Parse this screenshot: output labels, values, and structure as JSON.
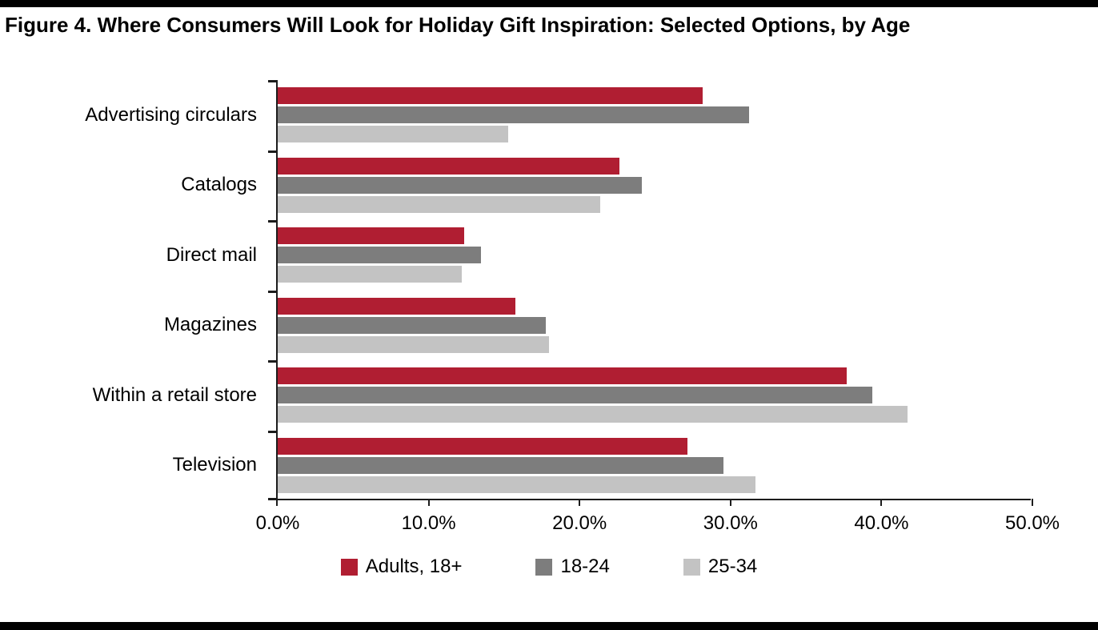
{
  "page": {
    "title": "Figure 4. Where Consumers Will Look for Holiday Gift Inspiration: Selected Options, by Age"
  },
  "chart_data": {
    "type": "bar",
    "orientation": "horizontal",
    "title": "Figure 4. Where Consumers Will Look for Holiday Gift Inspiration: Selected Options, by Age",
    "categories": [
      "Advertising circulars",
      "Catalogs",
      "Direct mail",
      "Magazines",
      "Within a retail store",
      "Television"
    ],
    "series": [
      {
        "name": "Adults, 18+",
        "color": "#B01E32",
        "values": [
          28.2,
          22.7,
          12.4,
          15.8,
          37.8,
          27.2
        ]
      },
      {
        "name": "18-24",
        "color": "#7D7D7D",
        "values": [
          31.3,
          24.2,
          13.5,
          17.8,
          39.5,
          29.6
        ]
      },
      {
        "name": "25-34",
        "color": "#C3C3C3",
        "values": [
          15.3,
          21.4,
          12.2,
          18.0,
          41.8,
          31.7
        ]
      }
    ],
    "xlabel": "",
    "ylabel": "",
    "x_ticks": [
      "0.0%",
      "10.0%",
      "20.0%",
      "30.0%",
      "40.0%",
      "50.0%"
    ],
    "xlim": [
      0,
      50
    ],
    "grid": false,
    "legend_position": "bottom",
    "axis_color": "#1c1c1c",
    "rule_color": "#000000"
  }
}
